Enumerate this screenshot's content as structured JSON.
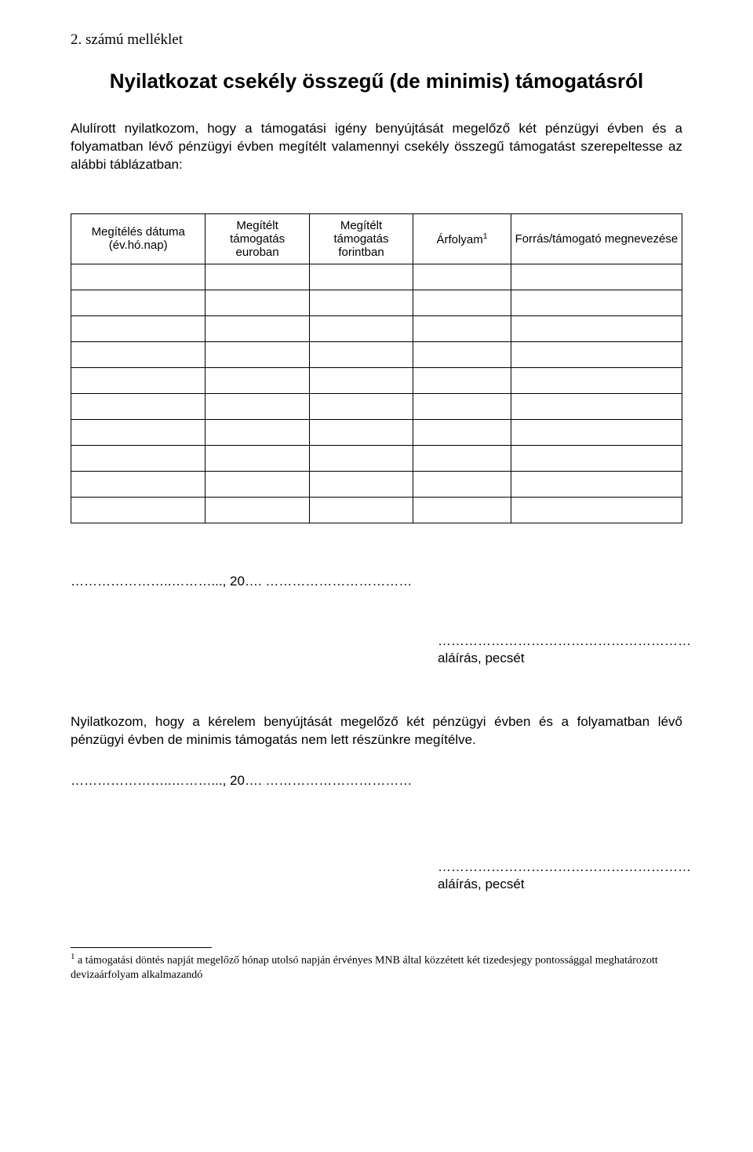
{
  "appendix_label": "2.  számú melléklet",
  "title": "Nyilatkozat csekély összegű (de minimis) támogatásról",
  "intro": "Alulírott nyilatkozom, hogy a támogatási igény benyújtását megelőző két pénzügyi évben és a folyamatban lévő pénzügyi évben megítélt valamennyi csekély összegű támogatást szerepeltesse az alábbi táblázatban:",
  "table": {
    "headers": [
      "Megítélés dátuma (év.hó.nap)",
      "Megítélt támogatás euroban",
      "Megítélt támogatás forintban",
      "Árfolyam",
      "Forrás/támogató megnevezése"
    ],
    "footnote_marker": "1",
    "row_count": 10
  },
  "dateline": "…………………..………..., 20…. ……………………………",
  "signature_dots": "…………………………………………………",
  "signature_label": "aláírás, pecsét",
  "declare2": "Nyilatkozom, hogy a kérelem benyújtását megelőző két pénzügyi évben és a folyamatban lévő pénzügyi évben de minimis támogatás nem lett részünkre megítélve.",
  "footnote": {
    "marker": "1",
    "text": " a támogatási döntés napját megelőző hónap utolsó napján érvényes MNB által közzétett két tizedesjegy pontossággal meghatározott devizaárfolyam alkalmazandó"
  }
}
